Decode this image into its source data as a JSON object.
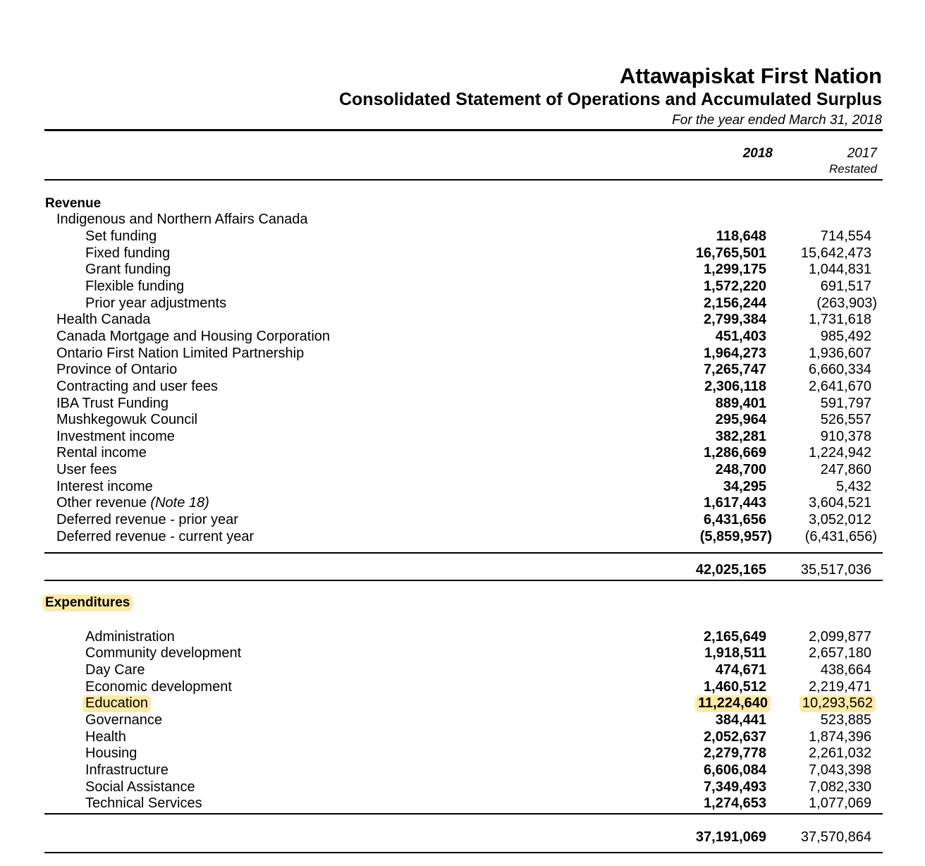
{
  "header": {
    "organization": "Attawapiskat First Nation",
    "statement": "Consolidated Statement of Operations and Accumulated Surplus",
    "period": "For the year ended March 31, 2018"
  },
  "columns": {
    "current": "2018",
    "prior": "2017",
    "prior_note": "Restated"
  },
  "revenue": {
    "title": "Revenue",
    "inac_label": "Indigenous and Northern Affairs Canada",
    "rows": [
      {
        "label": "Set funding",
        "v2018": "118,648",
        "v2017": "714,554"
      },
      {
        "label": "Fixed funding",
        "v2018": "16,765,501",
        "v2017": "15,642,473"
      },
      {
        "label": "Grant funding",
        "v2018": "1,299,175",
        "v2017": "1,044,831"
      },
      {
        "label": "Flexible funding",
        "v2018": "1,572,220",
        "v2017": "691,517"
      },
      {
        "label": "Prior year adjustments",
        "v2018": "2,156,244",
        "v2017": "(263,903)"
      },
      {
        "label": "Health Canada",
        "v2018": "2,799,384",
        "v2017": "1,731,618"
      },
      {
        "label": "Canada Mortgage and Housing Corporation",
        "v2018": "451,403",
        "v2017": "985,492"
      },
      {
        "label": "Ontario First Nation Limited Partnership",
        "v2018": "1,964,273",
        "v2017": "1,936,607"
      },
      {
        "label": "Province of Ontario",
        "v2018": "7,265,747",
        "v2017": "6,660,334"
      },
      {
        "label": "Contracting and user fees",
        "v2018": "2,306,118",
        "v2017": "2,641,670"
      },
      {
        "label": "IBA Trust Funding",
        "v2018": "889,401",
        "v2017": "591,797"
      },
      {
        "label": "Mushkegowuk Council",
        "v2018": "295,964",
        "v2017": "526,557"
      },
      {
        "label": "Investment income",
        "v2018": "382,281",
        "v2017": "910,378"
      },
      {
        "label": "Rental income",
        "v2018": "1,286,669",
        "v2017": "1,224,942"
      },
      {
        "label": "User fees",
        "v2018": "248,700",
        "v2017": "247,860"
      },
      {
        "label": "Interest income",
        "v2018": "34,295",
        "v2017": "5,432"
      },
      {
        "label": "Other revenue",
        "note": "(Note 18)",
        "v2018": "1,617,443",
        "v2017": "3,604,521"
      },
      {
        "label": "Deferred revenue - prior year",
        "v2018": "6,431,656",
        "v2017": "3,052,012"
      },
      {
        "label": "Deferred revenue - current year",
        "v2018": "(5,859,957)",
        "v2017": "(6,431,656)"
      }
    ],
    "total_2018": "42,025,165",
    "total_2017": "35,517,036"
  },
  "expenditures": {
    "title": "Expenditures",
    "rows": [
      {
        "label": "Administration",
        "v2018": "2,165,649",
        "v2017": "2,099,877"
      },
      {
        "label": "Community development",
        "v2018": "1,918,511",
        "v2017": "2,657,180"
      },
      {
        "label": "Day Care",
        "v2018": "474,671",
        "v2017": "438,664"
      },
      {
        "label": "Economic development",
        "v2018": "1,460,512",
        "v2017": "2,219,471"
      },
      {
        "label": "Education",
        "v2018": "11,224,640",
        "v2017": "10,293,562"
      },
      {
        "label": "Governance",
        "v2018": "384,441",
        "v2017": "523,885"
      },
      {
        "label": "Health",
        "v2018": "2,052,637",
        "v2017": "1,874,396"
      },
      {
        "label": "Housing",
        "v2018": "2,279,778",
        "v2017": "2,261,032"
      },
      {
        "label": "Infrastructure",
        "v2018": "6,606,084",
        "v2017": "7,043,398"
      },
      {
        "label": "Social Assistance",
        "v2018": "7,349,493",
        "v2017": "7,082,330"
      },
      {
        "label": "Technical Services",
        "v2018": "1,274,653",
        "v2017": "1,077,069"
      }
    ],
    "total_2018": "37,191,069",
    "total_2017": "37,570,864"
  }
}
